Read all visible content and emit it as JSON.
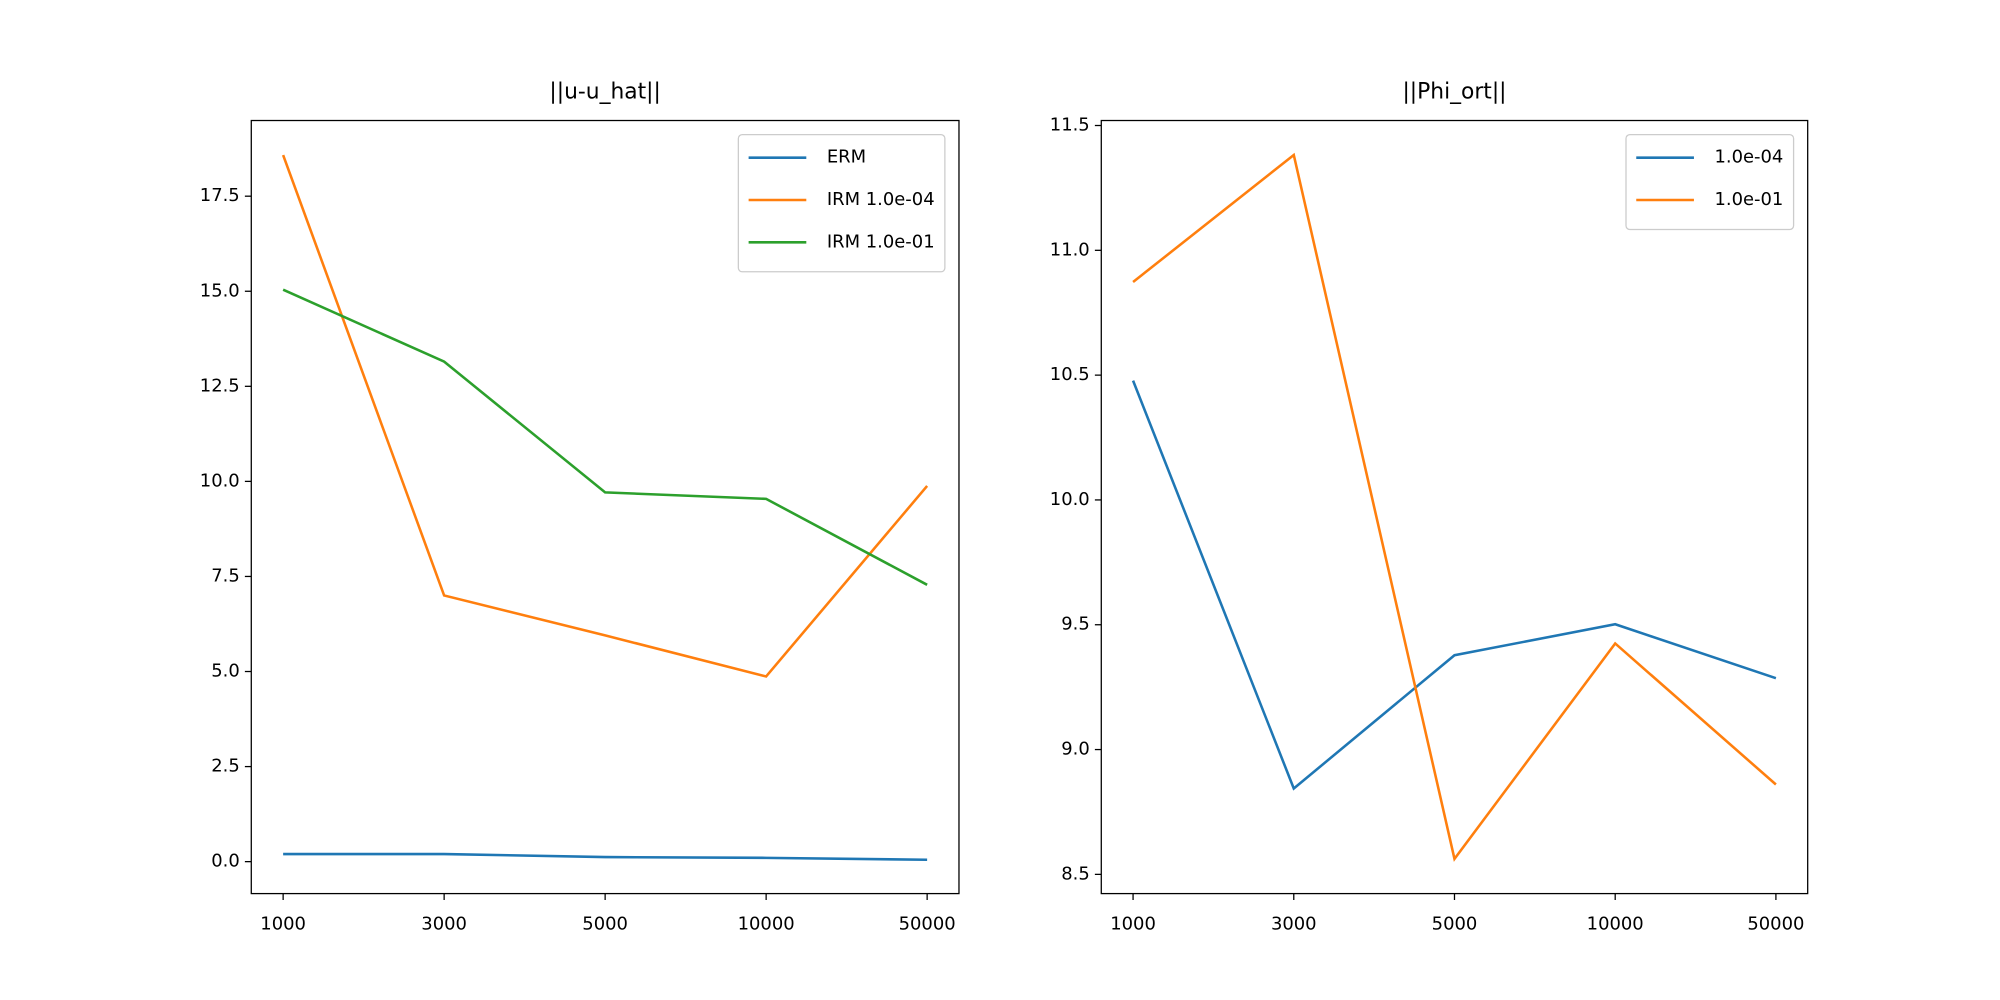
{
  "chart_data": [
    {
      "type": "line",
      "title": "||u-u_hat||",
      "categories": [
        "1000",
        "3000",
        "5000",
        "10000",
        "50000"
      ],
      "series": [
        {
          "name": "ERM",
          "color": "#1f77b4",
          "values": [
            0.2,
            0.2,
            0.12,
            0.1,
            0.05
          ]
        },
        {
          "name": "IRM 1.0e-04",
          "color": "#ff7f0e",
          "values": [
            18.58,
            7.0,
            5.95,
            4.87,
            9.88
          ]
        },
        {
          "name": "IRM 1.0e-01",
          "color": "#2ca02c",
          "values": [
            15.04,
            13.15,
            9.71,
            9.54,
            7.28
          ]
        }
      ],
      "ylim": [
        -0.84,
        19.49
      ],
      "yticks": [
        {
          "value": 0,
          "label": "0.0"
        },
        2.5,
        {
          "value": 5,
          "label": "5.0"
        },
        7.5,
        {
          "value": 10,
          "label": "10.0"
        },
        12.5,
        {
          "value": 15,
          "label": "15.0"
        },
        17.5
      ],
      "legend": "upper right"
    },
    {
      "type": "line",
      "title": "||Phi_ort||",
      "categories": [
        "1000",
        "3000",
        "5000",
        "10000",
        "50000"
      ],
      "series": [
        {
          "name": "1.0e-04",
          "color": "#1f77b4",
          "values": [
            10.478,
            8.844,
            9.378,
            9.502,
            9.286
          ]
        },
        {
          "name": "1.0e-01",
          "color": "#ff7f0e",
          "values": [
            10.873,
            11.382,
            8.562,
            9.425,
            8.86
          ]
        }
      ],
      "ylim": [
        8.423,
        11.52
      ],
      "yticks": [
        8.5,
        {
          "value": 9,
          "label": "9.0"
        },
        9.5,
        {
          "value": 10,
          "label": "10.0"
        },
        10.5,
        {
          "value": 11,
          "label": "11.0"
        },
        11.5
      ],
      "legend": "upper right"
    }
  ]
}
